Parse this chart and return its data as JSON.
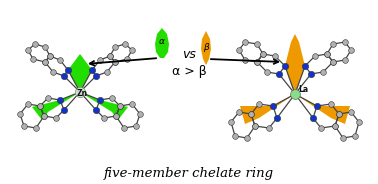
{
  "background_color": "#ffffff",
  "title_text": "five-member chelate ring",
  "title_fontsize": 9.5,
  "vs_text": "vs",
  "alpha_gt_beta_text": "α > β",
  "zn_label": "Zn",
  "la_label": "La",
  "alpha_label": "α",
  "beta_label": "β",
  "green_color": "#22dd00",
  "orange_color": "#ee9900",
  "gray_color": "#b0b0b0",
  "blue_color": "#1133cc",
  "bond_color": "#444444"
}
